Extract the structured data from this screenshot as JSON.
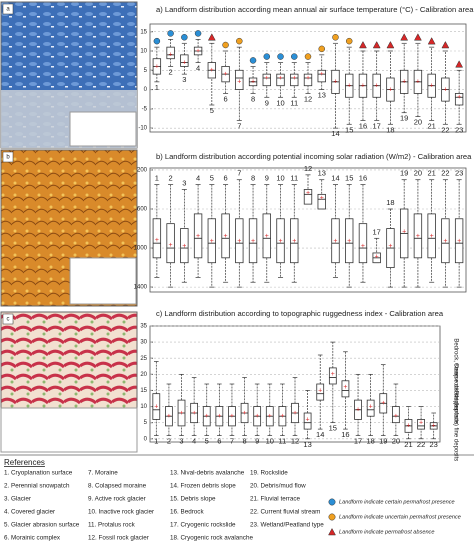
{
  "chart_data": [
    {
      "type": "box",
      "title": "a) Landform distribution according mean annual air surface temperature (°C) - Calibration area",
      "panel": "a",
      "categories": [
        "1",
        "2",
        "3",
        "4",
        "5",
        "6",
        "7",
        "8",
        "9",
        "10",
        "11",
        "12",
        "13",
        "14",
        "15",
        "16",
        "17",
        "18",
        "19",
        "20",
        "21",
        "22",
        "23"
      ],
      "ylim": [
        -11,
        17
      ],
      "yticks": [
        15,
        10,
        5,
        0,
        -5,
        -10
      ],
      "grid": true,
      "box_color": "#ffffff",
      "mean_color": "#d62728",
      "min": [
        2,
        6,
        4,
        7,
        -4,
        -1,
        -8,
        -1,
        -2,
        -2,
        -2,
        -1,
        0,
        -10,
        -9,
        -8,
        -8,
        -9,
        -6,
        -7,
        -8,
        -9,
        -9
      ],
      "q1": [
        4,
        8,
        6,
        9,
        3,
        2,
        0,
        1,
        1,
        1,
        1,
        1,
        2,
        -1,
        -2,
        -2,
        -2,
        -3,
        -1,
        -1,
        -2,
        -3,
        -4
      ],
      "median": [
        6,
        9,
        7,
        10,
        5,
        4,
        3,
        2,
        3,
        3,
        3,
        3,
        4,
        2,
        1,
        1,
        1,
        0,
        2,
        2,
        1,
        0,
        -2
      ],
      "q3": [
        8,
        11,
        9,
        11,
        7,
        6,
        5,
        3,
        4,
        4,
        4,
        4,
        5,
        5,
        4,
        4,
        4,
        3,
        5,
        5,
        4,
        3,
        -1
      ],
      "max": [
        11,
        13,
        12,
        13,
        12,
        10,
        11,
        6,
        7,
        7,
        7,
        7,
        9,
        12,
        11,
        10,
        10,
        10,
        12,
        12,
        11,
        10,
        5
      ],
      "mean": [
        6,
        9,
        7,
        10,
        5,
        4,
        2,
        2,
        3,
        3,
        3,
        3,
        4,
        2,
        1,
        1,
        1,
        0,
        2,
        2,
        1,
        0,
        -2
      ]
    },
    {
      "type": "box",
      "title": "b) Landform distribution according potential incoming solar radiation (W/m2) - Calibration area",
      "panel": "b",
      "categories": [
        "1",
        "2",
        "3",
        "4",
        "5",
        "6",
        "7",
        "8",
        "9",
        "10",
        "11",
        "12",
        "13",
        "14",
        "15",
        "16",
        "17",
        "18",
        "19",
        "20",
        "21",
        "22",
        "23"
      ],
      "ylim": [
        1450,
        180
      ],
      "yticks": [
        200,
        600,
        1000,
        1400
      ],
      "grid": true,
      "box_color": "#ffffff",
      "mean_color": "#d62728",
      "min": [
        350,
        350,
        400,
        350,
        350,
        350,
        300,
        350,
        350,
        350,
        350,
        250,
        300,
        350,
        350,
        350,
        900,
        600,
        300,
        300,
        300,
        300,
        300
      ],
      "q1": [
        700,
        750,
        800,
        650,
        700,
        650,
        700,
        700,
        650,
        700,
        700,
        400,
        450,
        700,
        700,
        750,
        1050,
        800,
        600,
        650,
        650,
        700,
        700
      ],
      "median": [
        950,
        1000,
        1000,
        900,
        950,
        900,
        950,
        950,
        900,
        950,
        950,
        450,
        500,
        950,
        950,
        1000,
        1100,
        1000,
        850,
        900,
        900,
        950,
        950
      ],
      "q3": [
        1100,
        1150,
        1150,
        1100,
        1150,
        1100,
        1150,
        1150,
        1100,
        1150,
        1150,
        550,
        600,
        1150,
        1150,
        1150,
        1150,
        1200,
        1100,
        1100,
        1100,
        1150,
        1150
      ],
      "max": [
        1300,
        1400,
        1350,
        1300,
        1400,
        1350,
        1400,
        1350,
        1350,
        1300,
        1350,
        500,
        550,
        1300,
        1400,
        1350,
        1150,
        1400,
        1400,
        1400,
        1350,
        1400,
        1400
      ],
      "mean": [
        920,
        970,
        980,
        880,
        930,
        880,
        930,
        930,
        880,
        930,
        930,
        440,
        490,
        930,
        930,
        980,
        1090,
        980,
        830,
        880,
        880,
        930,
        930
      ]
    },
    {
      "type": "box",
      "title": "c) Landform distribution according to topographic ruggedness index - Calibration area",
      "panel": "c",
      "categories": [
        "1",
        "2",
        "3",
        "4",
        "5",
        "6",
        "7",
        "8",
        "9",
        "10",
        "11",
        "12",
        "13",
        "14",
        "15",
        "16",
        "17",
        "18",
        "19",
        "20",
        "21",
        "22",
        "23"
      ],
      "ylim": [
        -1,
        35
      ],
      "yticks": [
        0,
        5,
        10,
        15,
        20,
        25,
        30,
        35
      ],
      "grid": true,
      "box_color": "#ffffff",
      "mean_color": "#d62728",
      "zones": [
        "Bedrock, steep rock slopes",
        "Coarse debris deposits",
        "Flat (surface) fine deposits"
      ],
      "min": [
        1,
        1,
        1,
        1,
        1,
        1,
        1,
        1,
        1,
        1,
        1,
        1,
        0,
        3,
        5,
        3,
        1,
        1,
        1,
        1,
        0,
        0,
        0
      ],
      "q1": [
        6,
        4,
        4,
        5,
        4,
        4,
        4,
        5,
        4,
        4,
        4,
        5,
        3,
        12,
        17,
        13,
        6,
        7,
        8,
        5,
        2,
        3,
        3
      ],
      "median": [
        9,
        7,
        8,
        8,
        7,
        7,
        7,
        8,
        7,
        7,
        7,
        8,
        5,
        14,
        19,
        15,
        9,
        9,
        11,
        7,
        4,
        4,
        4
      ],
      "q3": [
        14,
        10,
        12,
        11,
        10,
        10,
        10,
        11,
        10,
        10,
        10,
        11,
        8,
        17,
        22,
        18,
        12,
        12,
        14,
        10,
        6,
        6,
        5
      ],
      "max": [
        24,
        17,
        20,
        19,
        17,
        17,
        17,
        19,
        17,
        17,
        17,
        19,
        15,
        26,
        30,
        27,
        20,
        20,
        23,
        17,
        10,
        10,
        8
      ],
      "mean": [
        10,
        7,
        8,
        8,
        7,
        7,
        7,
        8,
        7,
        7,
        7,
        8,
        6,
        15,
        20,
        16,
        9,
        10,
        11,
        7,
        4,
        5,
        4
      ]
    }
  ],
  "references": {
    "title": "References",
    "items": [
      "1. Cryoplanation surface",
      "2. Perennial snowpatch",
      "3. Glacier",
      "4. Covered glacier",
      "5. Glacier abrasion surface",
      "6. Morainic complex",
      "7. Moraine",
      "8. Colapsed moraine",
      "9. Active rock glacier",
      "10. Inactive rock glacier",
      "11. Protalus rock",
      "12. Fossil rock glacier",
      "13. Nival-debris avalanche",
      "14. Frozen debris slope",
      "15. Debris slope",
      "16. Bedrock",
      "17. Cryogenic rockslide",
      "18. Cryogenic rock avalanche",
      "19. Rockslide",
      "20. Debris/mud flow",
      "21. Fluvial terrace",
      "22. Current fluvial stream",
      "23. Wetland/Peatland type"
    ]
  },
  "legend": [
    {
      "label": "Landform indicate certain permafrost presence",
      "color": "#2b8fd6",
      "shape": "circle",
      "members": [
        1,
        2,
        3,
        4,
        8,
        9,
        10,
        11
      ]
    },
    {
      "label": "Landform indicate uncertain permafrost presence",
      "color": "#f0a020",
      "shape": "circle",
      "members": [
        6,
        7,
        12,
        13,
        14,
        15
      ]
    },
    {
      "label": "Landform indicate permafrost absence",
      "color": "#d62728",
      "shape": "triangle",
      "members": [
        5,
        16,
        17,
        18,
        19,
        20,
        21,
        22,
        23
      ]
    }
  ]
}
